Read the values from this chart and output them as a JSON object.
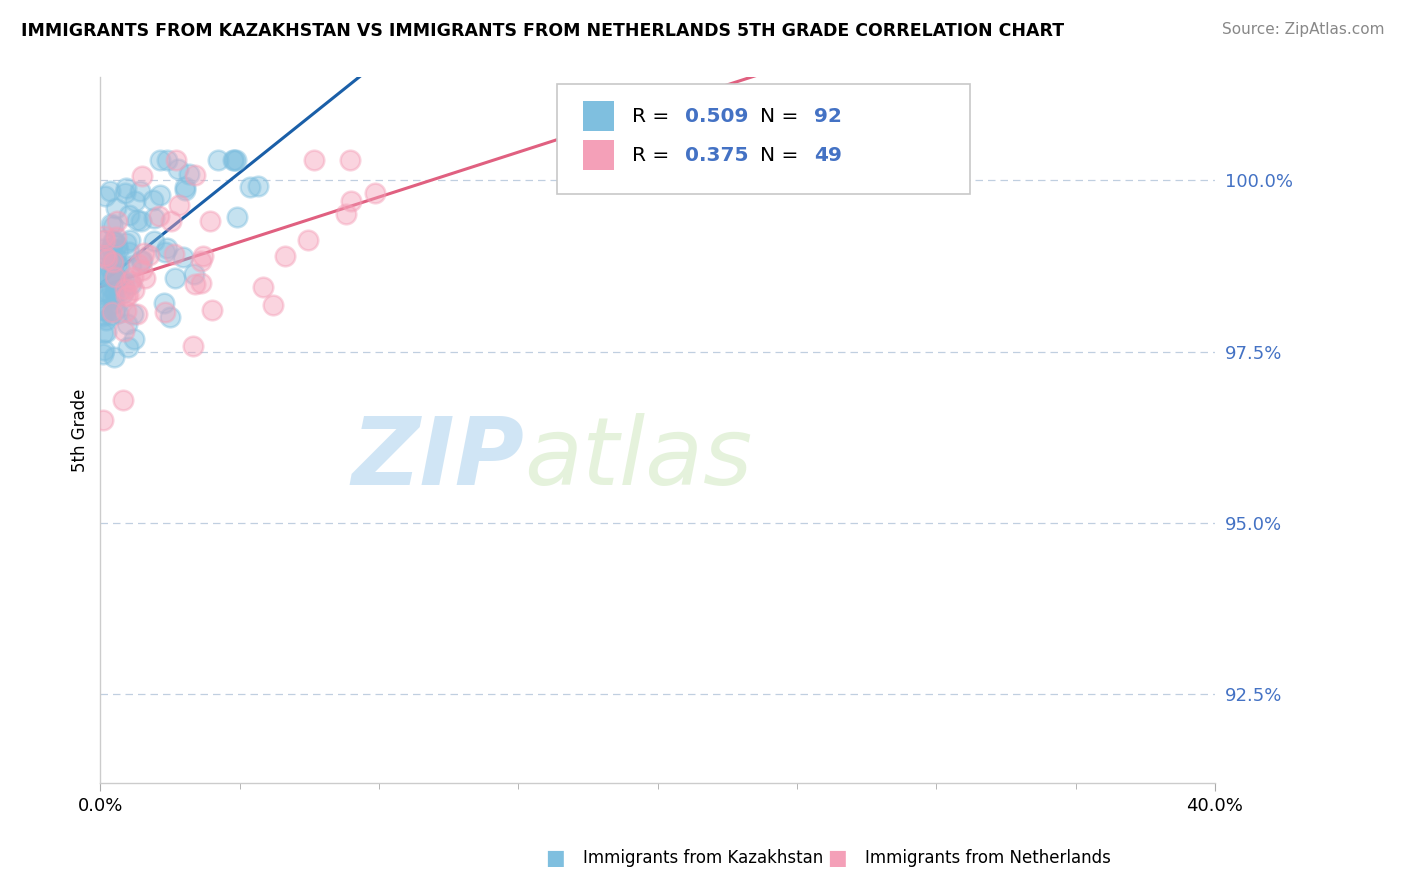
{
  "title": "IMMIGRANTS FROM KAZAKHSTAN VS IMMIGRANTS FROM NETHERLANDS 5TH GRADE CORRELATION CHART",
  "source": "Source: ZipAtlas.com",
  "ylabel_label": "5th Grade",
  "legend_1_label": "Immigrants from Kazakhstan",
  "legend_2_label": "Immigrants from Netherlands",
  "R1": 0.509,
  "N1": 92,
  "R2": 0.375,
  "N2": 49,
  "color_blue": "#7fbfdf",
  "color_pink": "#f4a0b8",
  "color_blue_line": "#1a5fa8",
  "color_pink_line": "#e06080",
  "watermark_zip": "ZIP",
  "watermark_atlas": "atlas",
  "xmin": 0.0,
  "xmax": 40.0,
  "ymin": 91.2,
  "ymax": 101.5,
  "yticks": [
    92.5,
    95.0,
    97.5,
    100.0
  ],
  "ytick_color": "#4472c4",
  "grid_color": "#c0cfe0",
  "spine_color": "#cccccc"
}
